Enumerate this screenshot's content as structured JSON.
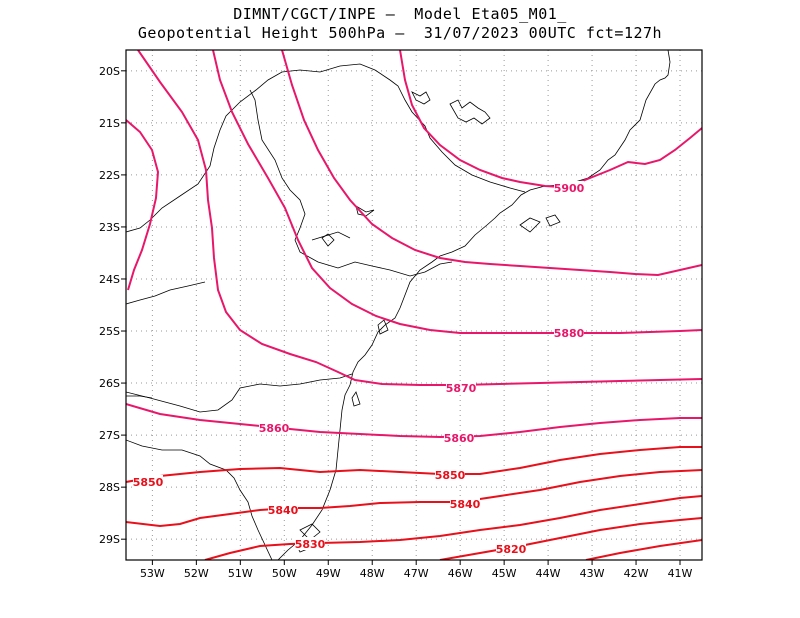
{
  "title": {
    "line1": "DIMNT/CGCT/INPE —  Model Eta05_M01_",
    "line2": "Geopotential Height 500hPa —  31/07/2023 00UTC fct=127h"
  },
  "map_data": {
    "type": "contour-map",
    "lon_range": [
      -53.6,
      -40.5
    ],
    "lat_range": [
      -29.4,
      -19.6
    ],
    "grid": true,
    "lon_ticks": [
      "53W",
      "52W",
      "51W",
      "50W",
      "49W",
      "48W",
      "47W",
      "46W",
      "45W",
      "44W",
      "43W",
      "42W",
      "41W"
    ],
    "lat_ticks": [
      "20S",
      "21S",
      "22S",
      "23S",
      "24S",
      "25S",
      "26S",
      "27S",
      "28S",
      "29S"
    ],
    "colors": {
      "high": "#e8176a",
      "low": "#e8101a",
      "coast": "#000000",
      "grid": "#999999"
    },
    "contour_labels": [
      "5900",
      "5880",
      "5870",
      "5860",
      "5860",
      "5850",
      "5850",
      "5840",
      "5840",
      "5830",
      "5820"
    ]
  }
}
